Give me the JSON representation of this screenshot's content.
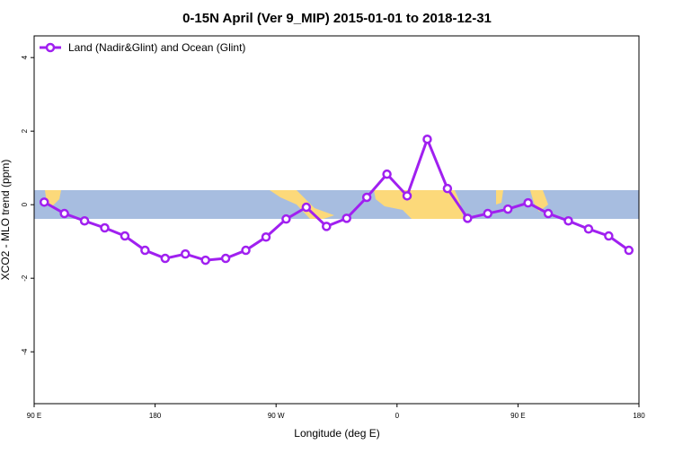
{
  "chart_data": {
    "type": "line",
    "title": "0-15N April (Ver 9_MIP)   2015-01-01 to 2018-12-31",
    "x_label": "Longitude (deg E)",
    "y_label": "XCO2 - MLO trend (ppm)",
    "x": [
      97.5,
      112.5,
      127.5,
      142.5,
      157.5,
      172.5,
      187.5,
      202.5,
      217.5,
      232.5,
      247.5,
      262.5,
      277.5,
      292.5,
      307.5,
      322.5,
      337.5,
      352.5,
      367.5,
      382.5,
      397.5,
      412.5,
      427.5,
      442.5,
      457.5,
      472.5,
      487.5,
      502.5,
      517.5,
      532.5
    ],
    "series": [
      {
        "name": "Land (Nadir&Glint) and Ocean (Glint)",
        "color": "#a020f0",
        "values": [
          0.07,
          -0.24,
          -0.44,
          -0.63,
          -0.85,
          -1.24,
          -1.46,
          -1.34,
          -1.51,
          -1.46,
          -1.24,
          -0.88,
          -0.39,
          -0.07,
          -0.59,
          -0.37,
          0.2,
          0.83,
          0.24,
          1.78,
          0.44,
          -0.37,
          -0.24,
          -0.12,
          0.05,
          -0.24,
          -0.44,
          -0.66,
          -0.85,
          -1.24
        ]
      }
    ],
    "xlim": [
      90,
      540
    ],
    "xticks": [
      {
        "value": 90,
        "label": "90 E"
      },
      180,
      {
        "value": 270,
        "label": "90 W"
      },
      {
        "value": 360,
        "label": "0"
      },
      {
        "value": 450,
        "label": "90 E"
      },
      {
        "value": 540,
        "label": "180"
      }
    ],
    "ylim": [
      -5.41,
      4.59
    ],
    "yticks": [
      -4,
      -2,
      0,
      2,
      4
    ],
    "grid": false,
    "legend": "top-left"
  }
}
